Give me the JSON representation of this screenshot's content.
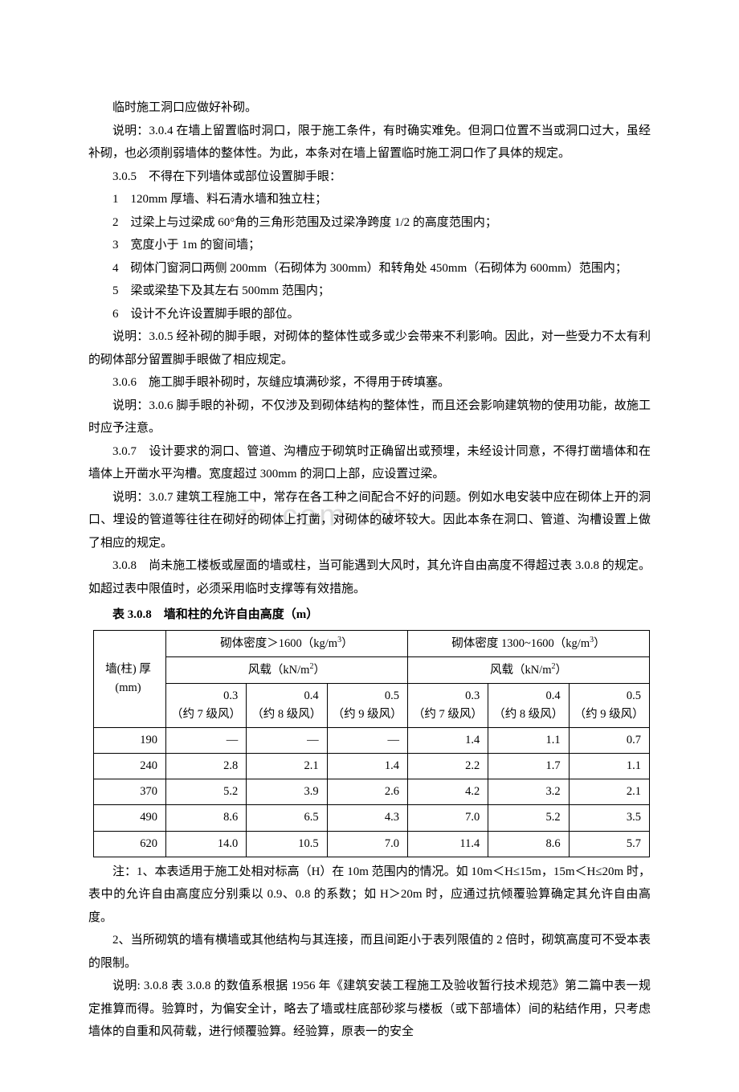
{
  "watermark": "n .com .cn",
  "paragraphs": {
    "p1": "临时施工洞口应做好补砌。",
    "p2": "说明：3.0.4 在墙上留置临时洞口，限于施工条件，有时确实难免。但洞口位置不当或洞口过大，虽经补砌，也必须削弱墙体的整体性。为此，本条对在墙上留置临时施工洞口作了具体的规定。",
    "p3": "3.0.5　不得在下列墙体或部位设置脚手眼：",
    "p3_1": "1　120mm 厚墙、料石清水墙和独立柱；",
    "p3_2": "2　过梁上与过梁成 60°角的三角形范围及过梁净跨度 1/2 的高度范围内；",
    "p3_3": "3　宽度小于 1m 的窗间墙；",
    "p3_4": "4　砌体门窗洞口两侧 200mm（石砌体为 300mm）和转角处 450mm（石砌体为 600mm）范围内；",
    "p3_5": "5　梁或梁垫下及其左右 500mm 范围内；",
    "p3_6": "6　设计不允许设置脚手眼的部位。",
    "p4": "说明：3.0.5 经补砌的脚手眼，对砌体的整体性或多或少会带来不利影响。因此，对一些受力不太有利的砌体部分留置脚手眼做了相应规定。",
    "p5": "3.0.6　施工脚手眼补砌时，灰缝应填满砂浆，不得用于砖填塞。",
    "p6": "说明：3.0.6 脚手眼的补砌，不仅涉及到砌体结构的整体性，而且还会影响建筑物的使用功能，故施工时应予注意。",
    "p7": "3.0.7　设计要求的洞口、管道、沟槽应于砌筑时正确留出或预埋，未经设计同意，不得打凿墙体和在墙体上开凿水平沟槽。宽度超过 300mm 的洞口上部，应设置过梁。",
    "p8": "说明：3.0.7 建筑工程施工中，常存在各工种之间配合不好的问题。例如水电安装中应在砌体上开的洞口、埋设的管道等往往在砌好的砌体上打凿，对砌体的破坏较大。因此本条在洞口、管道、沟槽设置上做了相应的规定。",
    "p9": "3.0.8　尚未施工楼板或屋面的墙或柱，当可能遇到大风时，其允许自由高度不得超过表 3.0.8 的规定。如超过表中限值时，必须采用临时支撑等有效措施。",
    "table_title": "表 3.0.8　墙和柱的允许自由高度（m）",
    "n1": "注：1、本表适用于施工处相对标高（H）在 10m 范围内的情况。如 10m＜H≤15m，15m＜H≤20m 时，表中的允许自由高度应分别乘以 0.9、0.8 的系数；如 H＞20m 时，应通过抗倾覆验算确定其允许自由高度。",
    "n2": "2、当所砌筑的墙有横墙或其他结构与其连接，而且间距小于表列限值的 2 倍时，砌筑高度可不受本表的限制。",
    "p10": "说明: 3.0.8 表 3.0.8 的数值系根据 1956 年《建筑安装工程施工及验收暂行技术规范》第二篇中表一规定推算而得。验算时，为偏安全计，略去了墙或柱底部砂浆与楼板（或下部墙体）间的粘结作用，只考虑墙体的自重和风荷载，进行倾覆验算。经验算，原表一的安全"
  },
  "table": {
    "col_header": "墙(柱)\n厚\n(mm)",
    "density_a_html": "砌体密度＞1600（kg/m<sup>3</sup>）",
    "density_b_html": "砌体密度 1300~1600（kg/m<sup>3</sup>）",
    "wind_header_html": "风载（kN/m<sup>2</sup>）",
    "wind_levels": [
      {
        "v": "0.3",
        "desc": "（约 7 级风）"
      },
      {
        "v": "0.4",
        "desc": "（约 8 级风）"
      },
      {
        "v": "0.5",
        "desc": "（约 9 级风）"
      }
    ],
    "rows": [
      {
        "t": "190",
        "a": [
          "—",
          "—",
          "—"
        ],
        "b": [
          "1.4",
          "1.1",
          "0.7"
        ]
      },
      {
        "t": "240",
        "a": [
          "2.8",
          "2.1",
          "1.4"
        ],
        "b": [
          "2.2",
          "1.7",
          "1.1"
        ]
      },
      {
        "t": "370",
        "a": [
          "5.2",
          "3.9",
          "2.6"
        ],
        "b": [
          "4.2",
          "3.2",
          "2.1"
        ]
      },
      {
        "t": "490",
        "a": [
          "8.6",
          "6.5",
          "4.3"
        ],
        "b": [
          "7.0",
          "5.2",
          "3.5"
        ]
      },
      {
        "t": "620",
        "a": [
          "14.0",
          "10.5",
          "7.0"
        ],
        "b": [
          "11.4",
          "8.6",
          "5.7"
        ]
      }
    ]
  }
}
